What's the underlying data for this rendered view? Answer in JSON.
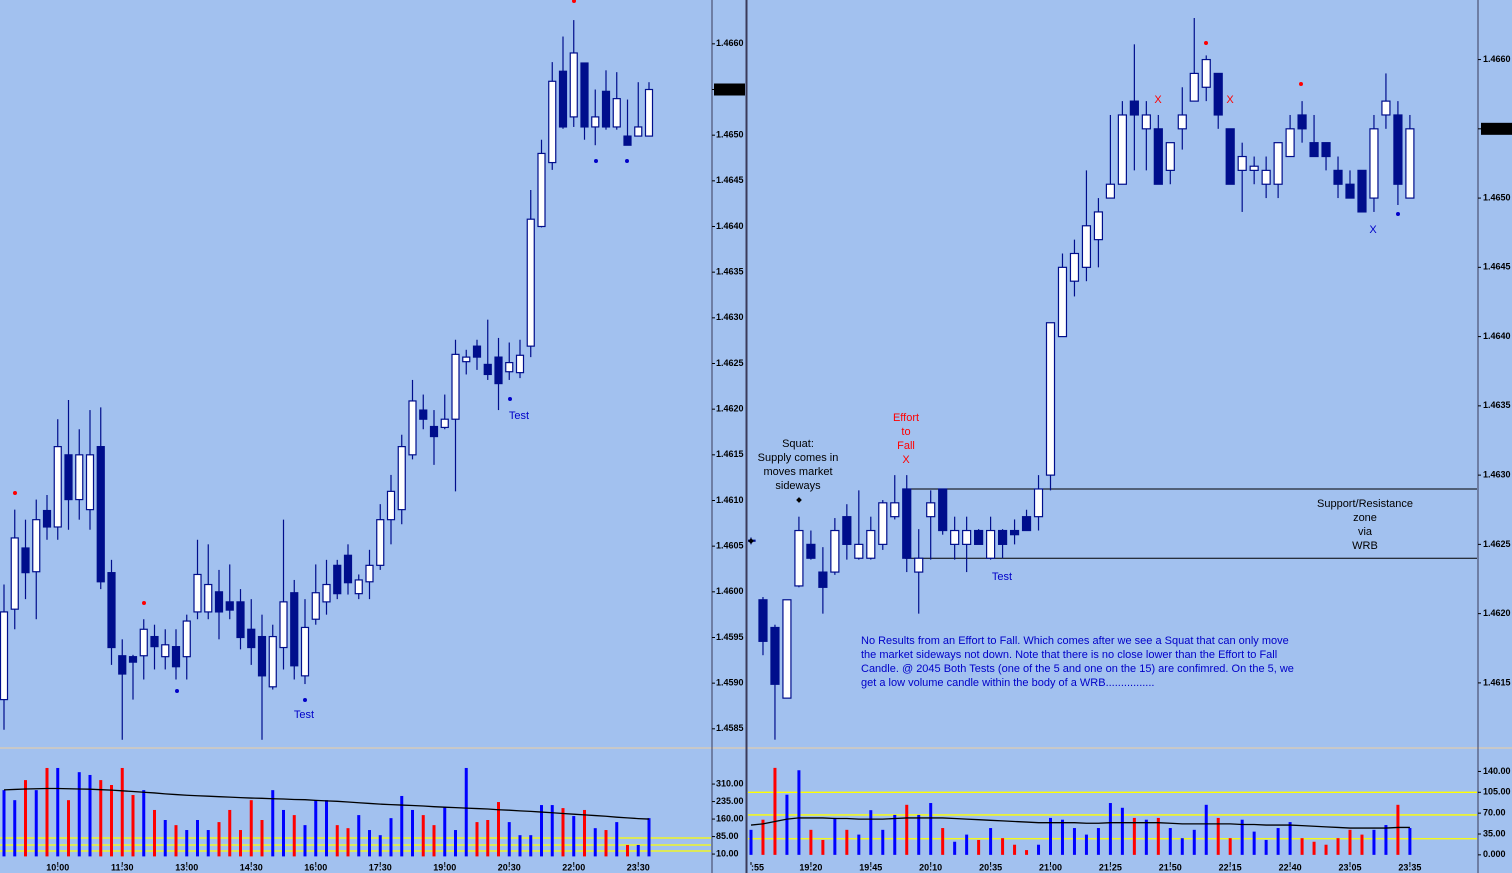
{
  "chart_data": [
    {
      "type": "candlestick",
      "categories": [
        null,
        null,
        null,
        null,
        null,
        "10:00",
        null,
        null,
        null,
        null,
        null,
        "11:30",
        null,
        null,
        null,
        null,
        null,
        "13:00",
        null,
        null,
        null,
        null,
        null,
        "14:30",
        null,
        null,
        null,
        null,
        null,
        "16:00",
        null,
        null,
        null,
        null,
        null,
        "17:30",
        null,
        null,
        null,
        null,
        null,
        "19:00",
        null,
        null,
        null,
        null,
        null,
        "20:30",
        null,
        null,
        null,
        null,
        null,
        "22:00",
        null,
        null,
        null,
        null,
        null,
        "23:30",
        null
      ],
      "open": [
        1.45882,
        1.45981,
        1.46048,
        1.46022,
        1.46089,
        1.46071,
        1.4615,
        1.46101,
        1.4609,
        1.46159,
        1.46021,
        1.4593,
        1.45929,
        1.4593,
        1.45951,
        1.45929,
        1.4594,
        1.45929,
        1.45978,
        1.45978,
        1.46,
        1.45989,
        1.45989,
        1.45959,
        1.45951,
        1.45896,
        1.45939,
        1.45999,
        1.45908,
        1.4597,
        1.45989,
        1.46029,
        1.4604,
        1.45998,
        1.46011,
        1.46029,
        1.46079,
        1.4609,
        1.4615,
        1.46199,
        1.46181,
        1.4618,
        1.46189,
        1.46252,
        1.46269,
        1.46249,
        1.46257,
        1.46241,
        1.4624,
        1.46269,
        1.464,
        1.4647,
        1.4657,
        1.4652,
        1.46579,
        1.46509,
        1.46548,
        1.46509,
        1.46499,
        1.46499,
        1.46499
      ],
      "high": [
        1.46008,
        1.4609,
        1.46079,
        1.46101,
        1.46106,
        1.46189,
        1.4621,
        1.46178,
        1.46199,
        1.46202,
        1.46035,
        1.45948,
        1.45931,
        1.4597,
        1.45964,
        1.45959,
        1.45959,
        1.45975,
        1.46057,
        1.46052,
        1.46024,
        1.4603,
        1.46003,
        1.45992,
        1.45975,
        1.45964,
        1.46079,
        1.46013,
        1.45992,
        1.4603,
        1.46035,
        1.46035,
        1.46052,
        1.46019,
        1.46046,
        1.46096,
        1.46128,
        1.46172,
        1.46232,
        1.46216,
        1.46199,
        1.46216,
        1.46276,
        1.46265,
        1.46276,
        1.46298,
        1.46278,
        1.46273,
        1.46276,
        1.4644,
        1.46495,
        1.4658,
        1.46608,
        1.46626,
        1.46579,
        1.4655,
        1.46571,
        1.46569,
        1.46539,
        1.46558,
        1.46558
      ],
      "low": [
        1.45849,
        1.45959,
        1.45992,
        1.4597,
        1.46057,
        1.46057,
        1.46068,
        1.46079,
        1.46068,
        1.46003,
        1.4592,
        1.45838,
        1.45882,
        1.45904,
        1.45915,
        1.45915,
        1.45904,
        1.45904,
        1.4597,
        1.4597,
        1.45948,
        1.4597,
        1.45937,
        1.4592,
        1.45838,
        1.45893,
        1.45915,
        1.45904,
        1.45899,
        1.45964,
        1.45975,
        1.45992,
        1.45997,
        1.45992,
        1.45992,
        1.46024,
        1.46052,
        1.46074,
        1.46145,
        1.46178,
        1.46139,
        1.46178,
        1.4611,
        1.46238,
        1.46243,
        1.46232,
        1.46199,
        1.46232,
        1.46234,
        1.46257,
        1.46399,
        1.46462,
        1.46507,
        1.46509,
        1.46495,
        1.46489,
        1.46506,
        1.46506,
        1.46489,
        1.46499,
        1.46499
      ],
      "close": [
        1.45978,
        1.46059,
        1.46021,
        1.46079,
        1.46071,
        1.46159,
        1.46101,
        1.4615,
        1.4615,
        1.46011,
        1.45939,
        1.4591,
        1.45923,
        1.45959,
        1.4594,
        1.45942,
        1.45918,
        1.45968,
        1.46019,
        1.46008,
        1.45978,
        1.4598,
        1.4595,
        1.45939,
        1.45908,
        1.45951,
        1.45989,
        1.45919,
        1.45961,
        1.45999,
        1.46008,
        1.45998,
        1.4601,
        1.46013,
        1.46029,
        1.46079,
        1.4611,
        1.46159,
        1.46209,
        1.46189,
        1.4617,
        1.46189,
        1.4626,
        1.46257,
        1.46257,
        1.46238,
        1.46228,
        1.46251,
        1.46259,
        1.46408,
        1.4648,
        1.46559,
        1.46509,
        1.4659,
        1.46509,
        1.4652,
        1.46509,
        1.4654,
        1.46489,
        1.46509,
        1.4655
      ],
      "up_color": "#ffffff",
      "down_color": "#000e8c",
      "wick_color": "#000e8c",
      "ylim": [
        1.45829,
        1.46648
      ],
      "yticks": [
        {
          "value": 1.4585,
          "label": "1.4585"
        },
        {
          "value": 1.459,
          "label": "1.4590"
        },
        {
          "value": 1.4595,
          "label": "1.4595"
        },
        {
          "value": 1.46,
          "label": "1.4600"
        },
        {
          "value": 1.4605,
          "label": "1.4605"
        },
        {
          "value": 1.461,
          "label": "1.4610"
        },
        {
          "value": 1.4615,
          "label": "1.4615"
        },
        {
          "value": 1.462,
          "label": "1.4620"
        },
        {
          "value": 1.4625,
          "label": "1.4625"
        },
        {
          "value": 1.463,
          "label": "1.4630"
        },
        {
          "value": 1.4635,
          "label": "1.4635"
        },
        {
          "value": 1.464,
          "label": "1.4640"
        },
        {
          "value": 1.4645,
          "label": "1.4645"
        },
        {
          "value": 1.465,
          "label": "1.4650"
        },
        {
          "value": 1.4655,
          "label": "1.4655"
        },
        {
          "value": 1.466,
          "label": "1.4660"
        }
      ],
      "last_price_label": "1.4655",
      "annotations": [
        {
          "text": "Test",
          "color": "#0000c8"
        },
        {
          "text": "Test",
          "color": "#0000c8"
        }
      ],
      "volume": {
        "values": [
          284,
          241,
          327,
          284,
          379,
          379,
          241,
          361,
          349,
          327,
          306,
          379,
          263,
          284,
          199,
          156,
          134,
          113,
          156,
          113,
          147,
          199,
          113,
          241,
          156,
          284,
          199,
          177,
          134,
          241,
          241,
          134,
          121,
          177,
          113,
          91,
          164,
          259,
          199,
          177,
          134,
          211,
          113,
          379,
          147,
          156,
          233,
          147,
          91,
          91,
          220,
          220,
          207,
          173,
          199,
          121,
          113,
          147,
          49,
          49,
          164
        ],
        "average": [
          285,
          287,
          289,
          290,
          291,
          291,
          290,
          289,
          288,
          286,
          284,
          281,
          278,
          275,
          272,
          268,
          265,
          262,
          260,
          258,
          256,
          254,
          252,
          250,
          249,
          247,
          246,
          244,
          243,
          240,
          238,
          236,
          233,
          230,
          227,
          224,
          222,
          220,
          218,
          216,
          213,
          211,
          209,
          207,
          205,
          203,
          200,
          198,
          195,
          193,
          190,
          187,
          184,
          181,
          178,
          175,
          172,
          168,
          165,
          162,
          160
        ],
        "up_color": "#0000ff",
        "down_color": "#ff0000",
        "average_color": "#000000",
        "reference_lines": [
          79,
          49,
          23
        ],
        "reference_color": "#ffff00",
        "ylim": [
          -24,
          456
        ],
        "yticks": [
          {
            "value": 310,
            "label": "310.00"
          },
          {
            "value": 235,
            "label": "235.00"
          },
          {
            "value": 160,
            "label": "160.00"
          },
          {
            "value": 85,
            "label": "85.00"
          },
          {
            "value": 10,
            "label": "10.00"
          }
        ]
      }
    },
    {
      "type": "candlestick",
      "categories": [
        ":55",
        null,
        null,
        null,
        null,
        "19:20",
        null,
        null,
        null,
        null,
        "19:45",
        null,
        null,
        null,
        null,
        "20:10",
        null,
        null,
        null,
        null,
        "20:35",
        null,
        null,
        null,
        null,
        "21:00",
        null,
        null,
        null,
        null,
        "21:25",
        null,
        null,
        null,
        null,
        "21:50",
        null,
        null,
        null,
        null,
        "22:15",
        null,
        null,
        null,
        null,
        "22:40",
        null,
        null,
        null,
        null,
        "23:05",
        null,
        null,
        null,
        null,
        "23:35"
      ],
      "open": [
        1.46253,
        1.4621,
        1.4619,
        1.46139,
        1.4622,
        1.4625,
        1.4623,
        1.4623,
        1.4627,
        1.4624,
        1.4624,
        1.4625,
        1.4627,
        1.4629,
        1.4623,
        1.4627,
        1.4629,
        1.4625,
        1.4625,
        1.4626,
        1.4624,
        1.4626,
        1.4626,
        1.4627,
        1.4627,
        1.463,
        1.464,
        1.4644,
        1.4645,
        1.4647,
        1.465,
        1.4651,
        1.4657,
        1.4655,
        1.4655,
        1.4652,
        1.4655,
        1.4657,
        1.4658,
        1.4659,
        1.4655,
        1.4652,
        1.4652,
        1.4651,
        1.4651,
        1.4653,
        1.4656,
        1.4654,
        1.4654,
        1.4652,
        1.4651,
        1.4652,
        1.465,
        1.4656,
        1.4656,
        1.465
      ],
      "high": [
        1.46255,
        1.46212,
        1.46192,
        1.4621,
        1.4627,
        1.4626,
        1.46248,
        1.46269,
        1.46279,
        1.46289,
        1.4627,
        1.46282,
        1.463,
        1.463,
        1.46261,
        1.46289,
        1.4629,
        1.4627,
        1.4627,
        1.46261,
        1.4627,
        1.46261,
        1.46268,
        1.46275,
        1.463,
        1.4641,
        1.4646,
        1.4647,
        1.4652,
        1.465,
        1.4656,
        1.4657,
        1.46611,
        1.4657,
        1.4656,
        1.4654,
        1.4658,
        1.4663,
        1.46603,
        1.4659,
        1.4655,
        1.4654,
        1.4653,
        1.4653,
        1.4654,
        1.4656,
        1.4657,
        1.4656,
        1.4654,
        1.4653,
        1.4652,
        1.4652,
        1.4656,
        1.4659,
        1.4657,
        1.4656
      ],
      "low": [
        1.4625,
        1.4617,
        1.46109,
        1.46139,
        1.46219,
        1.46239,
        1.462,
        1.46228,
        1.46239,
        1.46239,
        1.46239,
        1.46246,
        1.46268,
        1.4623,
        1.462,
        1.46239,
        1.46257,
        1.46239,
        1.4623,
        1.4625,
        1.46239,
        1.4624,
        1.4625,
        1.4626,
        1.4626,
        1.46289,
        1.464,
        1.46429,
        1.4644,
        1.4645,
        1.465,
        1.4651,
        1.4652,
        1.4652,
        1.4651,
        1.4651,
        1.46535,
        1.4657,
        1.4657,
        1.4655,
        1.4651,
        1.4649,
        1.4651,
        1.465,
        1.465,
        1.4653,
        1.4654,
        1.4653,
        1.4652,
        1.465,
        1.465,
        1.4649,
        1.4649,
        1.4655,
        1.46495,
        1.465
      ],
      "close": [
        1.46253,
        1.4618,
        1.46149,
        1.4621,
        1.4626,
        1.4624,
        1.46219,
        1.4626,
        1.4625,
        1.4625,
        1.4626,
        1.4628,
        1.4628,
        1.4624,
        1.4624,
        1.4628,
        1.4626,
        1.4626,
        1.4626,
        1.4625,
        1.4626,
        1.4625,
        1.46257,
        1.4626,
        1.4629,
        1.4641,
        1.4645,
        1.4646,
        1.4648,
        1.4649,
        1.4651,
        1.4656,
        1.4656,
        1.4656,
        1.4651,
        1.4654,
        1.4656,
        1.4659,
        1.466,
        1.4656,
        1.4651,
        1.4653,
        1.46523,
        1.4652,
        1.4654,
        1.4655,
        1.4655,
        1.4653,
        1.4653,
        1.4651,
        1.465,
        1.4649,
        1.4655,
        1.4657,
        1.4651,
        1.4655
      ],
      "up_color": "#ffffff",
      "down_color": "#000e8c",
      "wick_color": "#000e8c",
      "ylim": [
        1.46103,
        1.46643
      ],
      "yticks": [
        {
          "value": 1.4615,
          "label": "1.4615"
        },
        {
          "value": 1.462,
          "label": "1.4620"
        },
        {
          "value": 1.4625,
          "label": "1.4625"
        },
        {
          "value": 1.463,
          "label": "1.4630"
        },
        {
          "value": 1.4635,
          "label": "1.4635"
        },
        {
          "value": 1.464,
          "label": "1.4640"
        },
        {
          "value": 1.4645,
          "label": "1.4645"
        },
        {
          "value": 1.465,
          "label": "1.4650"
        },
        {
          "value": 1.4655,
          "label": "1.4655"
        },
        {
          "value": 1.466,
          "label": "1.4660"
        }
      ],
      "last_price_label": "1.4655",
      "zone": [
        1.4629,
        1.4624
      ],
      "annotations": [
        {
          "text": "Squat:",
          "color": "#000000"
        },
        {
          "text": "Supply comes in",
          "color": "#000000"
        },
        {
          "text": "moves market",
          "color": "#000000"
        },
        {
          "text": "sideways",
          "color": "#000000"
        },
        {
          "text": "Effort",
          "color": "#ff0000"
        },
        {
          "text": "to",
          "color": "#ff0000"
        },
        {
          "text": "Fall",
          "color": "#ff0000"
        },
        {
          "text": "X",
          "color": "#ff0000"
        },
        {
          "text": "Test",
          "color": "#0000c8"
        },
        {
          "text": "X",
          "color": "#ff0000"
        },
        {
          "text": "X",
          "color": "#ff0000"
        },
        {
          "text": "X",
          "color": "#0000c8"
        },
        {
          "text": "Support/Resistance",
          "color": "#000000"
        },
        {
          "text": "zone",
          "color": "#000000"
        },
        {
          "text": "via",
          "color": "#000000"
        },
        {
          "text": "WRB",
          "color": "#000000"
        },
        {
          "text": "No Results from an Effort to Fall. Which comes after we see a Squat that can only move",
          "color": "#0000c8"
        },
        {
          "text": "the market sideways not down. Note that there is no close lower than the Effort to Fall",
          "color": "#0000c8"
        },
        {
          "text": "Candle. @ 2045 Both Tests (one of the 5 and one on the 15) are confimred. On the 5, we",
          "color": "#0000c8"
        },
        {
          "text": "get a low volume candle within the body of a WRB................",
          "color": "#0000c8"
        }
      ],
      "volume": {
        "values": [
          42,
          59,
          146,
          101,
          142,
          42,
          25,
          62,
          42,
          34,
          75,
          42,
          67,
          84,
          67,
          87,
          45,
          22,
          34,
          25,
          45,
          28,
          17,
          8,
          17,
          62,
          59,
          45,
          34,
          45,
          87,
          79,
          62,
          59,
          62,
          45,
          28,
          42,
          84,
          62,
          28,
          59,
          39,
          25,
          45,
          55,
          28,
          22,
          17,
          28,
          42,
          34,
          42,
          50,
          84,
          45
        ],
        "average": [
          50,
          52,
          56,
          60,
          62,
          62,
          62,
          61,
          61,
          60,
          60,
          60,
          61,
          62,
          62,
          62,
          62,
          61,
          60,
          59,
          58,
          57,
          56,
          55,
          54,
          54,
          54,
          54,
          53,
          53,
          54,
          54,
          54,
          54,
          54,
          53,
          52,
          52,
          52,
          52,
          52,
          51,
          51,
          50,
          50,
          50,
          49,
          48,
          47,
          46,
          45,
          45,
          45,
          45,
          46,
          46
        ],
        "up_color": "#0000ff",
        "down_color": "#ff0000",
        "average_color": "#000000",
        "reference_lines": [
          105,
          67,
          27
        ],
        "reference_color": "#ffff00",
        "ylim": [
          -12,
          176
        ],
        "yticks": [
          {
            "value": 140,
            "label": "140.00"
          },
          {
            "value": 105,
            "label": "105.00"
          },
          {
            "value": 70,
            "label": "70.00"
          },
          {
            "value": 35,
            "label": "35.00"
          },
          {
            "value": 0,
            "label": "0.000"
          }
        ]
      }
    }
  ]
}
